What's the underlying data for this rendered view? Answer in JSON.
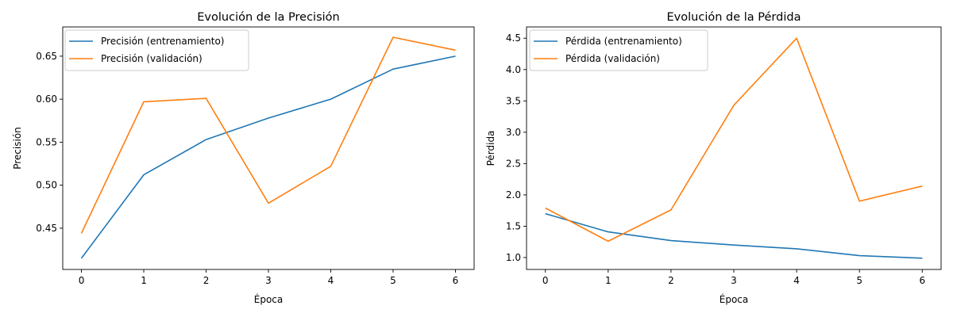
{
  "chart_data": [
    {
      "type": "line",
      "title": "Evolución de la Precisión",
      "xlabel": "Época",
      "ylabel": "Precisión",
      "x": [
        0,
        1,
        2,
        3,
        4,
        5,
        6
      ],
      "xticks": [
        "0",
        "1",
        "2",
        "3",
        "4",
        "5",
        "6"
      ],
      "xlim": [
        -0.3,
        6.3
      ],
      "yticks": [
        0.45,
        0.5,
        0.55,
        0.6,
        0.65
      ],
      "ytick_labels": [
        "0.45",
        "0.50",
        "0.55",
        "0.60",
        "0.65"
      ],
      "ylim": [
        0.402,
        0.684
      ],
      "grid": false,
      "legend_position": "top-left",
      "series": [
        {
          "name": "Precisión (entrenamiento)",
          "color": "#1f77b4",
          "values": [
            0.415,
            0.512,
            0.553,
            0.578,
            0.6,
            0.635,
            0.65
          ]
        },
        {
          "name": "Precisión (validación)",
          "color": "#ff7f0e",
          "values": [
            0.444,
            0.597,
            0.601,
            0.479,
            0.522,
            0.672,
            0.657
          ]
        }
      ]
    },
    {
      "type": "line",
      "title": "Evolución de la Pérdida",
      "xlabel": "Época",
      "ylabel": "Pérdida",
      "x": [
        0,
        1,
        2,
        3,
        4,
        5,
        6
      ],
      "xticks": [
        "0",
        "1",
        "2",
        "3",
        "4",
        "5",
        "6"
      ],
      "xlim": [
        -0.3,
        6.3
      ],
      "yticks": [
        1.0,
        1.5,
        2.0,
        2.5,
        3.0,
        3.5,
        4.0,
        4.5
      ],
      "ytick_labels": [
        "1.0",
        "1.5",
        "2.0",
        "2.5",
        "3.0",
        "3.5",
        "4.0",
        "4.5"
      ],
      "ylim": [
        0.81,
        4.68
      ],
      "grid": false,
      "legend_position": "top-left",
      "series": [
        {
          "name": "Pérdida (entrenamiento)",
          "color": "#1f77b4",
          "values": [
            1.7,
            1.41,
            1.27,
            1.2,
            1.14,
            1.03,
            0.99
          ]
        },
        {
          "name": "Pérdida (validación)",
          "color": "#ff7f0e",
          "values": [
            1.79,
            1.26,
            1.76,
            3.43,
            4.5,
            1.9,
            2.14
          ]
        }
      ]
    }
  ]
}
